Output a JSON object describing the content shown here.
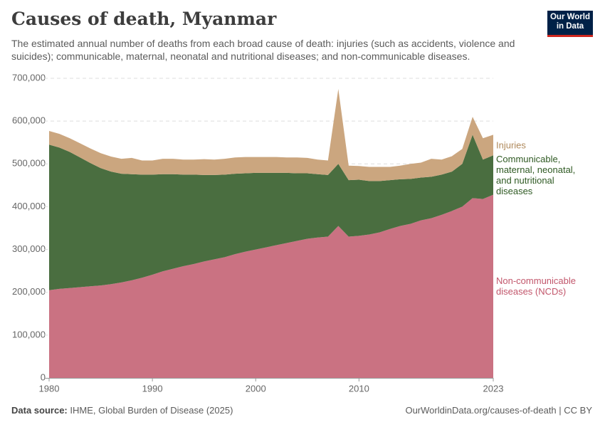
{
  "chart_data": {
    "type": "stacked_area",
    "title": "Causes of death, Myanmar",
    "subtitle": "The estimated annual number of deaths from each broad cause of death: injuries (such as accidents, violence and suicides); communicable, maternal, neonatal and nutritional diseases; and non-communicable diseases.",
    "x": [
      1980,
      1981,
      1982,
      1983,
      1984,
      1985,
      1986,
      1987,
      1988,
      1989,
      1990,
      1991,
      1992,
      1993,
      1994,
      1995,
      1996,
      1997,
      1998,
      1999,
      2000,
      2001,
      2002,
      2003,
      2004,
      2005,
      2006,
      2007,
      2008,
      2009,
      2010,
      2011,
      2012,
      2013,
      2014,
      2015,
      2016,
      2017,
      2018,
      2019,
      2020,
      2021,
      2022,
      2023
    ],
    "xlim": [
      1980,
      2023
    ],
    "xticks": [
      1980,
      1990,
      2000,
      2010,
      2023
    ],
    "ylim": [
      0,
      700000
    ],
    "yticks": [
      0,
      {
        "value": 100000,
        "label": "100,000"
      },
      {
        "value": 200000,
        "label": "200,000"
      },
      {
        "value": 300000,
        "label": "300,000"
      },
      {
        "value": 400000,
        "label": "400,000"
      },
      {
        "value": 500000,
        "label": "500,000"
      },
      {
        "value": 600000,
        "label": "600,000"
      },
      {
        "value": 700000,
        "label": "700,000"
      }
    ],
    "grid": true,
    "series": [
      {
        "name": "Non-communicable diseases (NCDs)",
        "color": "#ca7282",
        "label_color": "#c2566b",
        "values": [
          205000,
          208000,
          210000,
          212000,
          214000,
          216000,
          219000,
          223000,
          228000,
          234000,
          241000,
          249000,
          255000,
          261000,
          266000,
          272000,
          277000,
          282000,
          289000,
          295000,
          300000,
          305000,
          310000,
          315000,
          320000,
          325000,
          328000,
          330000,
          355000,
          330000,
          332000,
          335000,
          340000,
          348000,
          355000,
          360000,
          368000,
          373000,
          381000,
          390000,
          400000,
          420000,
          418000,
          428000
        ]
      },
      {
        "name": "Communicable, maternal, neonatal, and nutritional diseases",
        "color": "#4a6e40",
        "label_color": "#2f5a23",
        "values": [
          340000,
          330000,
          318000,
          303000,
          288000,
          274000,
          263000,
          254000,
          248000,
          241000,
          234000,
          227000,
          221000,
          214000,
          209000,
          202000,
          197000,
          193000,
          188000,
          183000,
          179000,
          174000,
          169000,
          164000,
          158000,
          153000,
          148000,
          144000,
          145000,
          132000,
          131000,
          125000,
          120000,
          114000,
          109000,
          105000,
          100000,
          97000,
          94000,
          92000,
          100000,
          148000,
          92000,
          92000
        ]
      },
      {
        "name": "Injuries",
        "color": "#cba67f",
        "label_color": "#b08a5c",
        "values": [
          32000,
          32000,
          32000,
          33000,
          34000,
          35000,
          35000,
          35000,
          38000,
          33000,
          33000,
          36000,
          36000,
          35000,
          35000,
          37000,
          36000,
          37000,
          38000,
          38000,
          37000,
          37000,
          37000,
          36000,
          37000,
          36000,
          34000,
          34000,
          175000,
          34000,
          32000,
          33000,
          33000,
          31000,
          32000,
          35000,
          35000,
          42000,
          35000,
          36000,
          35000,
          42000,
          50000,
          48000
        ]
      }
    ],
    "source_label": "Data source:",
    "source": "IHME, Global Burden of Disease (2025)",
    "url": "OurWorldinData.org/causes-of-death | CC BY",
    "logo": "Our World in Data"
  }
}
